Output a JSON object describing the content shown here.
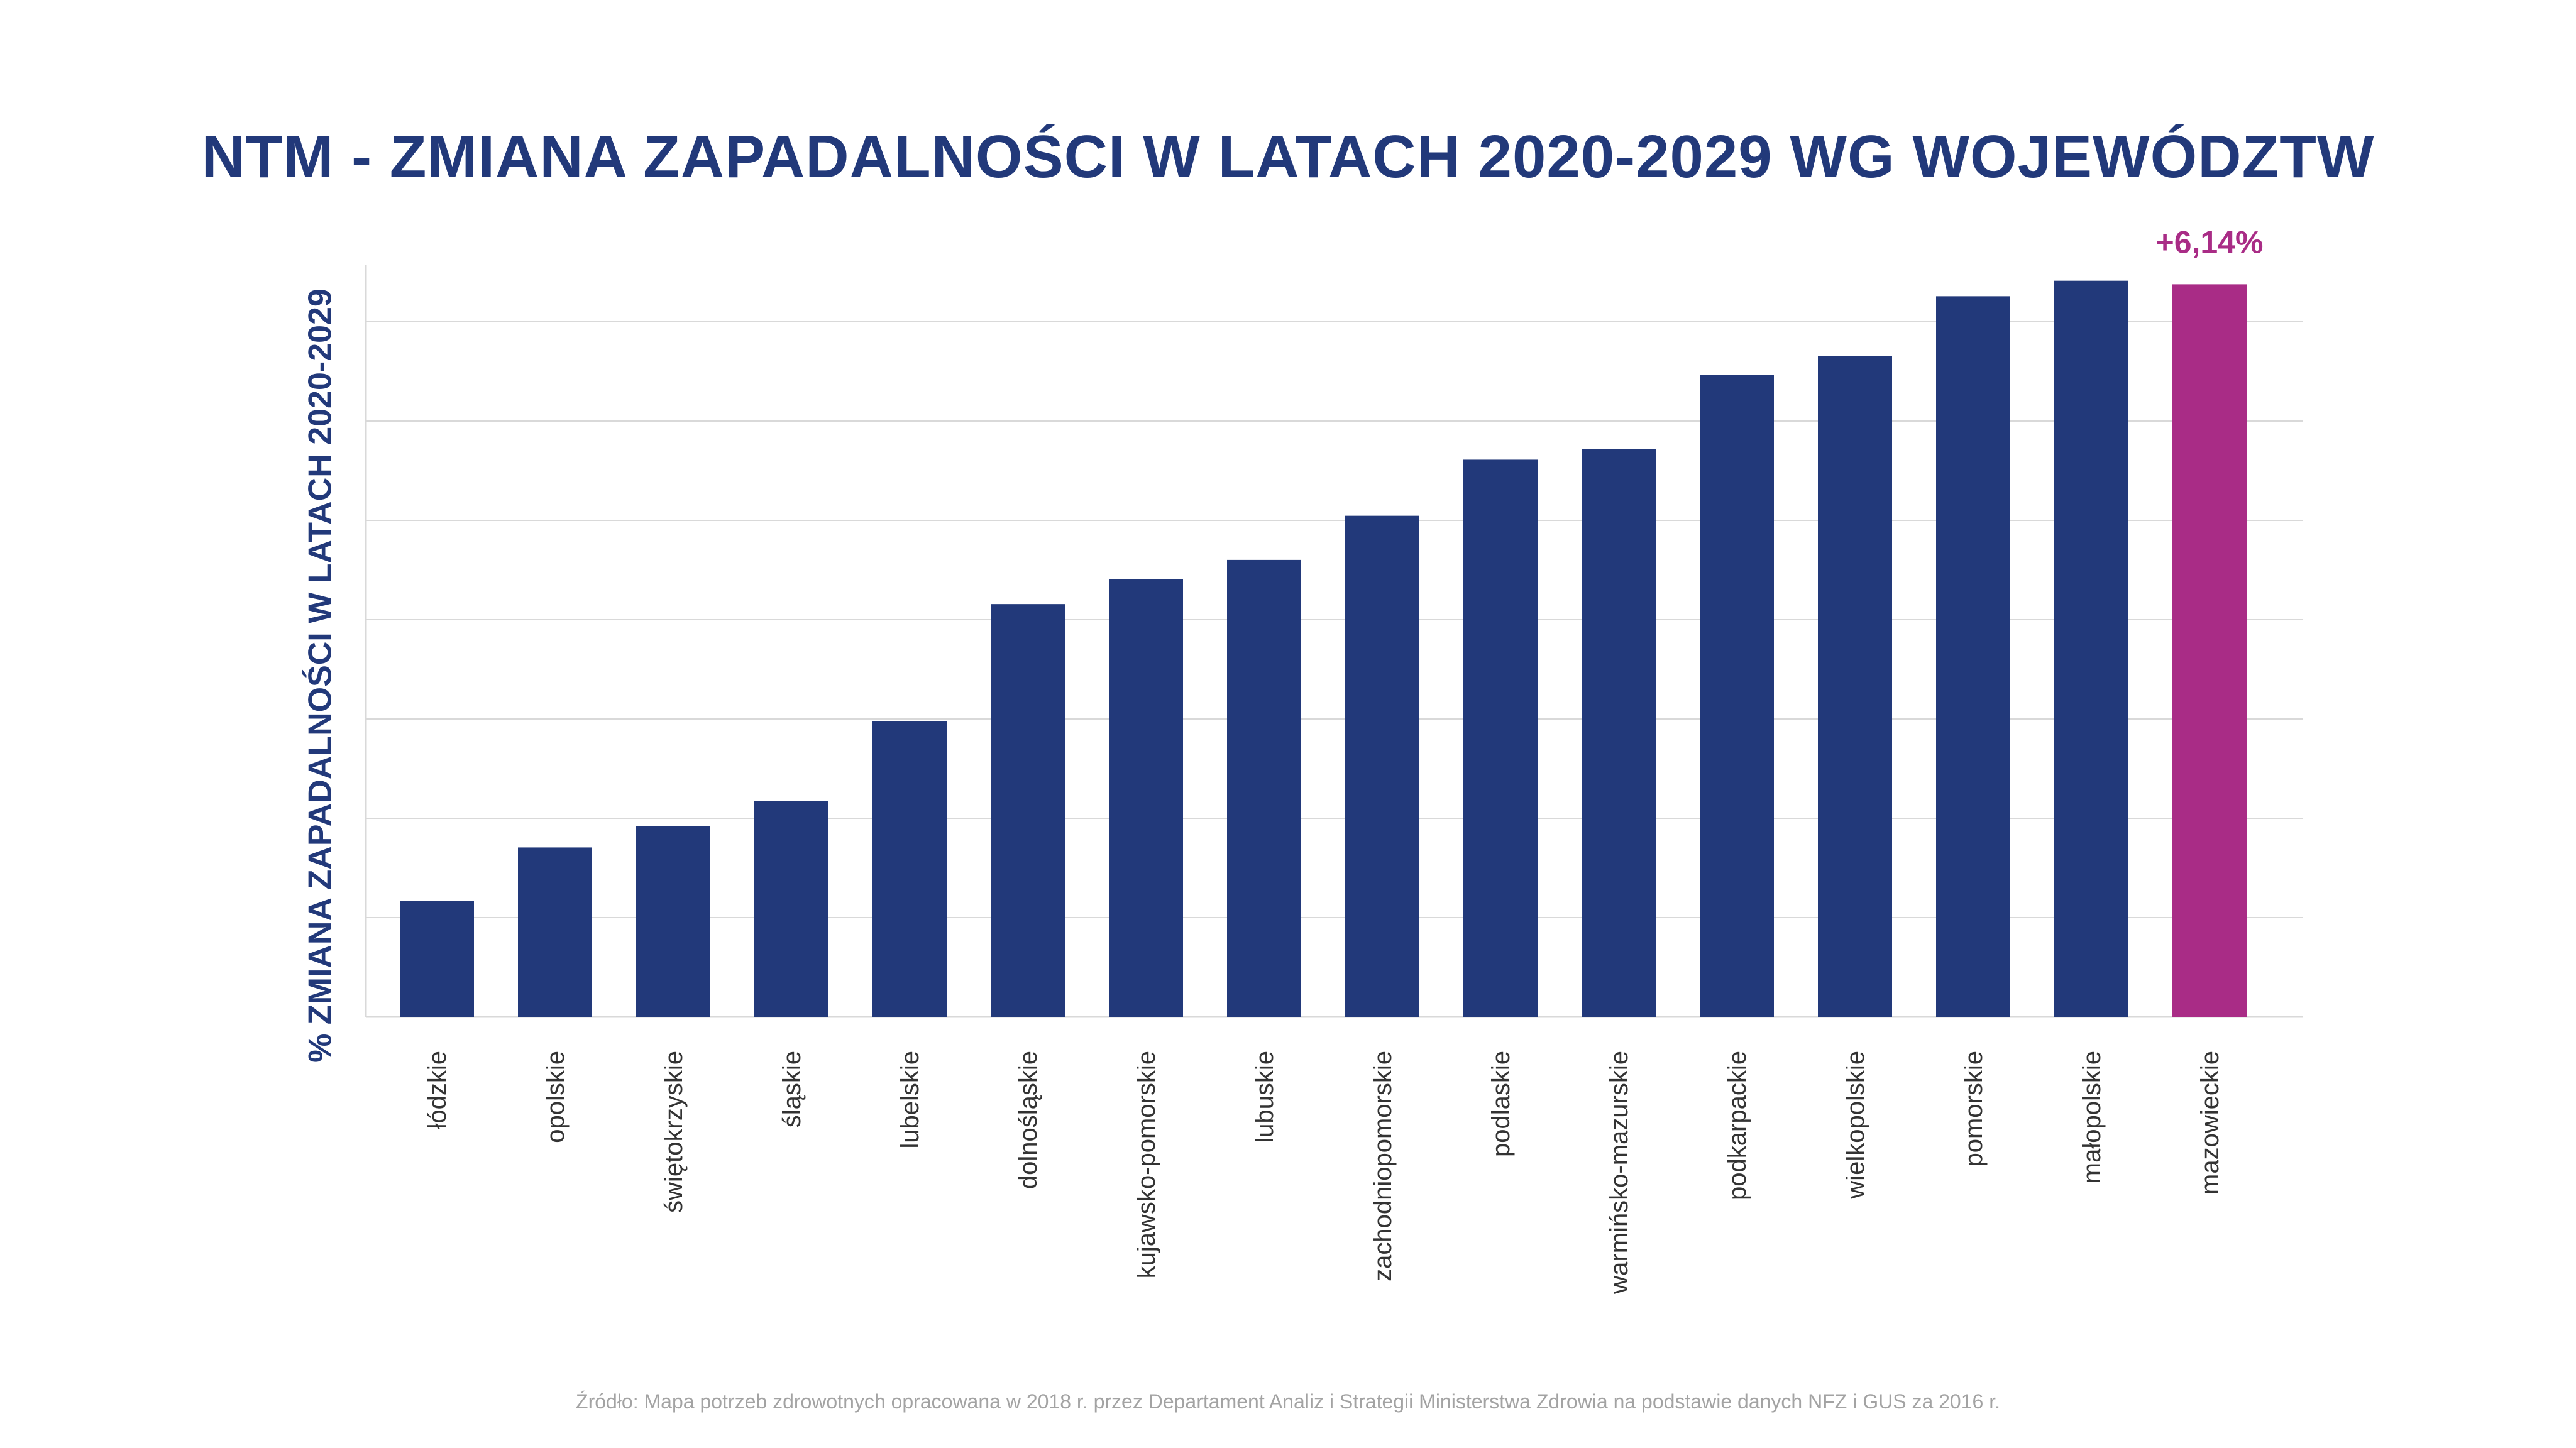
{
  "colors": {
    "bar": "#22397a",
    "highlight": "#a92c86",
    "title": "#22397a",
    "grid": "#d9d9d9",
    "label": "#333333",
    "source": "#a3a3a3"
  },
  "chart_data": {
    "type": "bar",
    "title": "NTM - ZMIANA ZAPADALNOŚCI W LATACH 2020-2029 WG WOJEWÓDZTW",
    "ylabel": "% ZMIANA ZAPADALNOŚCI W LATACH 2020-2029",
    "xlabel": "",
    "ylim": [
      0,
      6.3
    ],
    "grid": true,
    "tick_labels_visible": false,
    "categories": [
      "łódzkie",
      "opolskie",
      "świętokrzyskie",
      "śląskie",
      "lubelskie",
      "dolnośląskie",
      "kujawsko-pomorskie",
      "lubuskie",
      "zachodniopomorskie",
      "podlaskie",
      "warmińsko-mazurskie",
      "podkarpackie",
      "wielkopolskie",
      "pomorskie",
      "małopolskie",
      "mazowieckie"
    ],
    "values": [
      0.97,
      1.42,
      1.6,
      1.81,
      2.48,
      3.46,
      3.67,
      3.83,
      4.2,
      4.67,
      4.76,
      5.38,
      5.54,
      6.04,
      6.17,
      6.14
    ],
    "highlight_index": 15,
    "annotations": [
      {
        "category": "mazowieckie",
        "text": "+6,14%"
      }
    ]
  },
  "source": "Źródło: Mapa potrzeb zdrowotnych opracowana w 2018 r. przez Departament Analiz i Strategii Ministerstwa Zdrowia na podstawie danych NFZ i GUS za 2016 r."
}
